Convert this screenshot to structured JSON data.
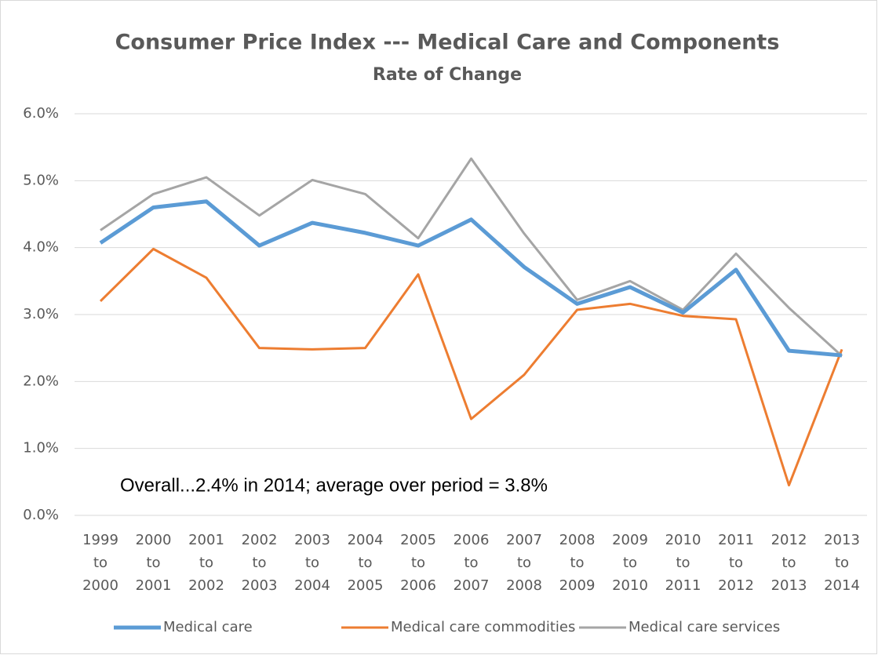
{
  "chart_data": {
    "type": "line",
    "title": "Consumer Price Index --- Medical Care and Components",
    "subtitle": "Rate of Change",
    "annotation": "Overall...2.4% in 2014; average over period = 3.8%",
    "categories": [
      "1999\nto\n2000",
      "2000\nto\n2001",
      "2001\nto\n2002",
      "2002\nto\n2003",
      "2003\nto\n2004",
      "2004\nto\n2005",
      "2005\nto\n2006",
      "2006\nto\n2007",
      "2007\nto\n2008",
      "2008\nto\n2009",
      "2009\nto\n2010",
      "2010\nto\n2011",
      "2011\nto\n2012",
      "2012\nto\n2013",
      "2013\nto\n2014"
    ],
    "series": [
      {
        "name": "Medical care",
        "color": "#5b9bd5",
        "values": [
          4.07,
          4.6,
          4.69,
          4.03,
          4.37,
          4.22,
          4.03,
          4.42,
          3.71,
          3.16,
          3.41,
          3.03,
          3.67,
          2.46,
          2.39
        ]
      },
      {
        "name": "Medical care commodities",
        "color": "#ed7d31",
        "values": [
          3.2,
          3.98,
          3.55,
          2.5,
          2.48,
          2.5,
          3.6,
          1.44,
          2.1,
          3.07,
          3.16,
          2.98,
          2.93,
          0.45,
          2.48
        ]
      },
      {
        "name": "Medical care services",
        "color": "#a5a5a5",
        "values": [
          4.26,
          4.8,
          5.05,
          4.48,
          5.01,
          4.8,
          4.14,
          5.33,
          4.21,
          3.22,
          3.5,
          3.07,
          3.91,
          3.1,
          2.38
        ]
      }
    ],
    "ylim": [
      0,
      6
    ],
    "yticks": [
      {
        "value": 0,
        "label": "0.0%"
      },
      {
        "value": 1,
        "label": "1.0%"
      },
      {
        "value": 2,
        "label": "2.0%"
      },
      {
        "value": 3,
        "label": "3.0%"
      },
      {
        "value": 4,
        "label": "4.0%"
      },
      {
        "value": 5,
        "label": "5.0%"
      },
      {
        "value": 6,
        "label": "6.0%"
      }
    ],
    "grid": true,
    "legend": "bottom"
  }
}
